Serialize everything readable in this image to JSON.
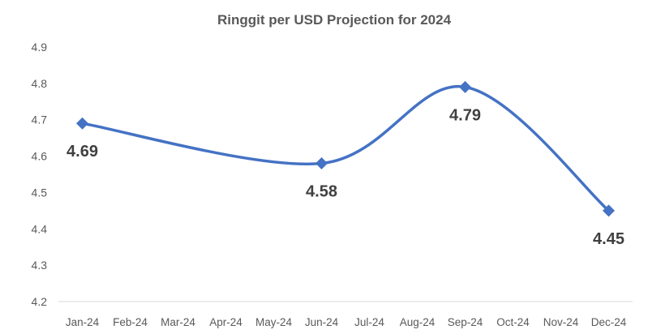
{
  "chart_data": {
    "type": "line",
    "title": "Ringgit per USD Projection for 2024",
    "xlabel": "",
    "ylabel": "",
    "categories": [
      "Jan-24",
      "Feb-24",
      "Mar-24",
      "Apr-24",
      "May-24",
      "Jun-24",
      "Jul-24",
      "Aug-24",
      "Sep-24",
      "Oct-24",
      "Nov-24",
      "Dec-24"
    ],
    "yticks": [
      "4.2",
      "4.3",
      "4.4",
      "4.5",
      "4.6",
      "4.7",
      "4.8",
      "4.9"
    ],
    "ylim": [
      4.2,
      4.9
    ],
    "grid": false,
    "smooth": true,
    "marker": "diamond",
    "line_color": "#4472C4",
    "series": [
      {
        "points": [
          {
            "x": "Jan-24",
            "y": 4.69,
            "label": "4.69"
          },
          {
            "x": "Jun-24",
            "y": 4.58,
            "label": "4.58"
          },
          {
            "x": "Sep-24",
            "y": 4.79,
            "label": "4.79"
          },
          {
            "x": "Dec-24",
            "y": 4.45,
            "label": "4.45"
          }
        ]
      }
    ]
  }
}
